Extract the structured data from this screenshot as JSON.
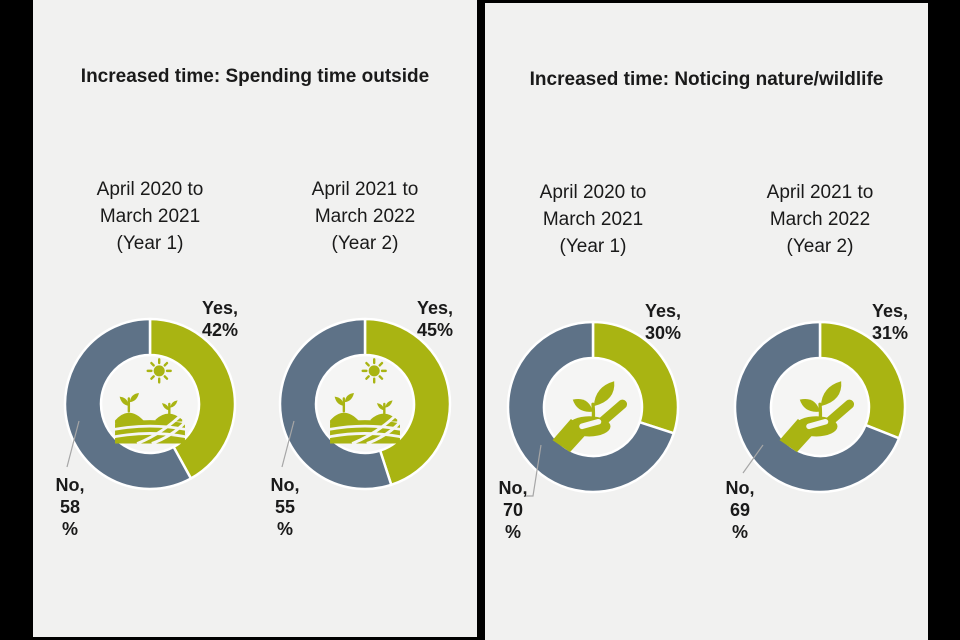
{
  "colors": {
    "yes_green": "#A9B412",
    "no_blue": "#5E7287",
    "leader_gray": "#A6A6A6",
    "panel_background": "#F1F1F0",
    "frame_black": "#000000",
    "text_black": "#1A1A1A",
    "donut_hole": "#F5F5F4"
  },
  "chart_data": [
    {
      "type": "pie",
      "subtype": "donut",
      "title": "Increased time: Spending time outside",
      "group": "April 2020 to March 2021 (Year 1)",
      "labels": [
        "Yes",
        "No"
      ],
      "values": [
        42,
        58
      ],
      "unit": "%",
      "colors": [
        "#A9B412",
        "#5E7287"
      ],
      "start_angle_deg": 0,
      "direction": "clockwise",
      "legend": "none",
      "data_labels": [
        "Yes, 42%",
        "No, 58 %"
      ],
      "center_icon": "field-icon"
    },
    {
      "type": "pie",
      "subtype": "donut",
      "title": "Increased time: Spending time outside",
      "group": "April 2021 to March 2022 (Year 2)",
      "labels": [
        "Yes",
        "No"
      ],
      "values": [
        45,
        55
      ],
      "unit": "%",
      "colors": [
        "#A9B412",
        "#5E7287"
      ],
      "start_angle_deg": 0,
      "direction": "clockwise",
      "legend": "none",
      "data_labels": [
        "Yes, 45%",
        "No, 55 %"
      ],
      "center_icon": "field-icon"
    },
    {
      "type": "pie",
      "subtype": "donut",
      "title": "Increased time: Noticing nature/wildlife",
      "group": "April 2020 to March 2021 (Year 1)",
      "labels": [
        "Yes",
        "No"
      ],
      "values": [
        30,
        70
      ],
      "unit": "%",
      "colors": [
        "#A9B412",
        "#5E7287"
      ],
      "start_angle_deg": 0,
      "direction": "clockwise",
      "legend": "none",
      "data_labels": [
        "Yes, 30%",
        "No, 70 %"
      ],
      "center_icon": "hand-plant-icon"
    },
    {
      "type": "pie",
      "subtype": "donut",
      "title": "Increased time: Noticing nature/wildlife",
      "group": "April 2021 to March 2022 (Year 2)",
      "labels": [
        "Yes",
        "No"
      ],
      "values": [
        31,
        69
      ],
      "unit": "%",
      "colors": [
        "#A9B412",
        "#5E7287"
      ],
      "start_angle_deg": 0,
      "direction": "clockwise",
      "legend": "none",
      "data_labels": [
        "Yes, 31%",
        "No, 69 %"
      ],
      "center_icon": "hand-plant-icon"
    }
  ],
  "panels": [
    {
      "title": "Increased time: Spending time outside",
      "icon": "field-icon",
      "charts": [
        {
          "sub1": "April 2020 to",
          "sub2": "March 2021",
          "sub3": "(Year 1)",
          "yes": 42,
          "no": 58,
          "yes1": "Yes,",
          "yes2": "42%",
          "no1": "No,",
          "no2": "58",
          "no3": "%"
        },
        {
          "sub1": "April 2021 to",
          "sub2": "March 2022",
          "sub3": "(Year 2)",
          "yes": 45,
          "no": 55,
          "yes1": "Yes,",
          "yes2": "45%",
          "no1": "No,",
          "no2": "55",
          "no3": "%"
        }
      ]
    },
    {
      "title": "Increased time: Noticing nature/wildlife",
      "icon": "hand-plant-icon",
      "charts": [
        {
          "sub1": "April 2020 to",
          "sub2": "March 2021",
          "sub3": "(Year 1)",
          "yes": 30,
          "no": 70,
          "yes1": "Yes,",
          "yes2": "30%",
          "no1": "No,",
          "no2": "70",
          "no3": "%"
        },
        {
          "sub1": "April 2021 to",
          "sub2": "March 2022",
          "sub3": "(Year 2)",
          "yes": 31,
          "no": 69,
          "yes1": "Yes,",
          "yes2": "31%",
          "no1": "No,",
          "no2": "69",
          "no3": "%"
        }
      ]
    }
  ]
}
